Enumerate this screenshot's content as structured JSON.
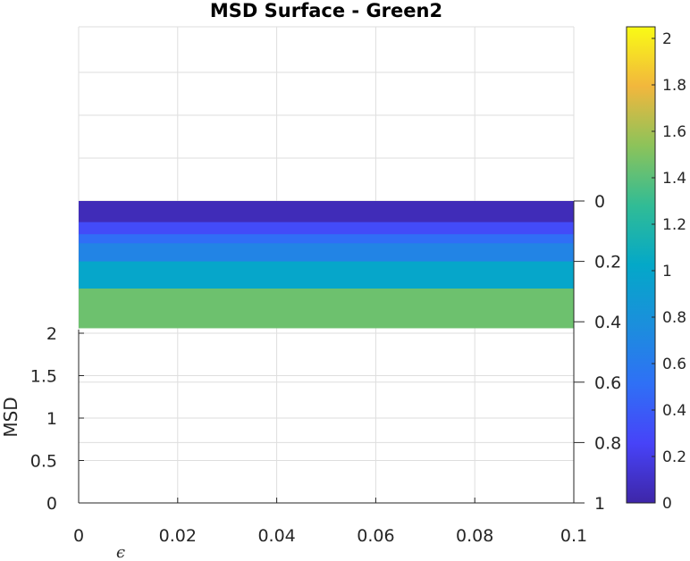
{
  "chart_data": {
    "type": "heatmap",
    "title": "MSD Surface - Green2",
    "xlabel": "ϵ",
    "ylabel": "MSD",
    "xlim": [
      0,
      0.1
    ],
    "x_ticks": [
      "0",
      "0.02",
      "0.04",
      "0.06",
      "0.08",
      "0.1"
    ],
    "left_axis": {
      "ylim": [
        0,
        2
      ],
      "ticks": [
        "0",
        "0.5",
        "1",
        "1.5",
        "2"
      ]
    },
    "right_axis": {
      "ylim": [
        0,
        1
      ],
      "direction": "reverse",
      "ticks": [
        "0",
        "0.2",
        "0.4",
        "0.6",
        "0.8",
        "1"
      ]
    },
    "grid": true,
    "bands": [
      {
        "y0": 0.0,
        "y1": 0.07,
        "value": 0.05
      },
      {
        "y0": 0.07,
        "y1": 0.11,
        "value": 0.3
      },
      {
        "y0": 0.11,
        "y1": 0.14,
        "value": 0.5
      },
      {
        "y0": 0.14,
        "y1": 0.2,
        "value": 0.68
      },
      {
        "y0": 0.2,
        "y1": 0.29,
        "value": 1.0
      },
      {
        "y0": 0.29,
        "y1": 0.42,
        "value": 1.45
      }
    ],
    "colorbar": {
      "colormap": "parula",
      "clim": [
        0,
        2.05
      ],
      "ticks": [
        "0",
        "0.2",
        "0.4",
        "0.6",
        "0.8",
        "1",
        "1.2",
        "1.4",
        "1.6",
        "1.8",
        "2"
      ]
    }
  }
}
